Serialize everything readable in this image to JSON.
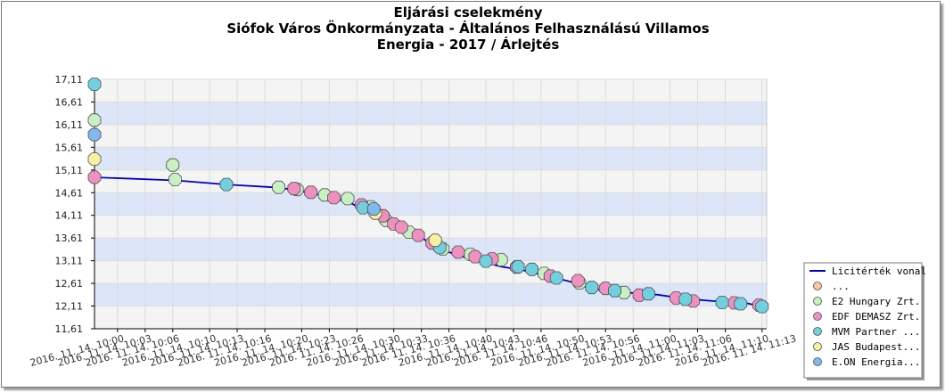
{
  "chart_data": {
    "type": "line",
    "title": [
      "Eljárási cselekmény",
      "Siófok Város Önkormányzata - Általános Felhasználású Villamos",
      "Energia - 2017 / Árlejtés"
    ],
    "ylim": [
      11.61,
      17.11
    ],
    "yticks": [
      "11,61",
      "12,11",
      "12,61",
      "13,11",
      "13,61",
      "14,11",
      "14,61",
      "15,11",
      "15,61",
      "16,11",
      "16,61",
      "17,11"
    ],
    "xlim": [
      "2016.11.14. 09:57:30",
      "2016.11.14. 11:10:30"
    ],
    "xticks": [
      {
        "t": "2016.11.14. 10:00",
        "label": "2016. 11. 14. 10:00"
      },
      {
        "t": "2016.11.14. 10:03",
        "label": "2016. 11. 14. 10:03"
      },
      {
        "t": "2016.11.14. 10:06",
        "label": "2016. 11. 14. 10:06"
      },
      {
        "t": "2016.11.14. 10:10",
        "label": "2016. 11. 14. 10:10"
      },
      {
        "t": "2016.11.14. 10:13",
        "label": "2016. 11. 14. 10:13"
      },
      {
        "t": "2016.11.14. 10:16",
        "label": "2016. 11. 14. 10:16"
      },
      {
        "t": "2016.11.14. 10:20",
        "label": "2016. 11. 14. 10:20"
      },
      {
        "t": "2016.11.14. 10:23",
        "label": "2016. 11. 14. 10:23"
      },
      {
        "t": "2016.11.14. 10:26",
        "label": "2016. 11. 14. 10:26"
      },
      {
        "t": "2016.11.14. 10:30",
        "label": "2016. 11. 14. 10:30"
      },
      {
        "t": "2016.11.14. 10:33",
        "label": "2016. 11. 14. 10:33"
      },
      {
        "t": "2016.11.14. 10:36",
        "label": "2016. 11. 14. 10:36"
      },
      {
        "t": "2016.11.14. 10:40",
        "label": "2016. 11. 14. 10:40"
      },
      {
        "t": "2016.11.14. 10:43",
        "label": "2016. 11. 14. 10:43"
      },
      {
        "t": "2016.11.14. 10:46",
        "label": "2016. 11. 14. 10:46"
      },
      {
        "t": "2016.11.14. 10:50",
        "label": "2016. 11. 14. 10:50"
      },
      {
        "t": "2016.11.14. 10:53",
        "label": "2016. 11. 14. 10:53"
      },
      {
        "t": "2016.11.14. 10:56",
        "label": "2016. 11. 14. 10:56"
      },
      {
        "t": "2016.11.14. 11:00",
        "label": "2016. 11. 14. 11:00"
      },
      {
        "t": "2016.11.14. 11:03",
        "label": "2016. 11. 14. 11:03"
      },
      {
        "t": "2016.11.14. 11:06",
        "label": "2016. 11. 14. 11:06"
      },
      {
        "t": "2016.11.14. 11:10",
        "label": "2016. 11. 14. 11:10"
      },
      {
        "t": "2016.11.14. 11:13",
        "label": "2016. 11. 14. 11:13"
      }
    ],
    "grid": true,
    "legend_position": "bottom-right",
    "legend": [
      {
        "label": "Licitérték vonal",
        "kind": "line",
        "color": "#0000cc"
      },
      {
        "label": "...",
        "kind": "marker",
        "color": "#f5c8a8"
      },
      {
        "label": "E2 Hungary Zrt.",
        "kind": "marker",
        "color": "#c8f0c0"
      },
      {
        "label": "EDF DEMASZ Zrt.",
        "kind": "marker",
        "color": "#f090c0"
      },
      {
        "label": "MVM Partner ...",
        "kind": "marker",
        "color": "#70d0e0"
      },
      {
        "label": "JAS Budapest...",
        "kind": "marker",
        "color": "#f8f0a0"
      },
      {
        "label": "E.ON Energia...",
        "kind": "marker",
        "color": "#80b8f0"
      }
    ],
    "series": [
      {
        "name": "Licitérték vonal",
        "kind": "line",
        "color": "#0000cc",
        "points": [
          [
            "2016.11.14. 09:57:30",
            14.95
          ],
          [
            "2016.11.14. 10:06:20",
            14.88
          ],
          [
            "2016.11.14. 10:11:50",
            14.79
          ],
          [
            "2016.11.14. 10:17:40",
            14.72
          ],
          [
            "2016.11.14. 10:20:00",
            14.64
          ],
          [
            "2016.11.14. 10:22:30",
            14.54
          ],
          [
            "2016.11.14. 10:25:10",
            14.4
          ],
          [
            "2016.11.14. 10:26:20",
            14.27
          ],
          [
            "2016.11.14. 10:28:00",
            14.16
          ],
          [
            "2016.11.14. 10:29:10",
            14.02
          ],
          [
            "2016.11.14. 10:30:40",
            13.86
          ],
          [
            "2016.11.14. 10:32:20",
            13.69
          ],
          [
            "2016.11.14. 10:34:00",
            13.5
          ],
          [
            "2016.11.14. 10:35:30",
            13.33
          ],
          [
            "2016.11.14. 10:37:40",
            13.19
          ],
          [
            "2016.11.14. 10:39:10",
            13.1
          ],
          [
            "2016.11.14. 10:41:40",
            12.98
          ],
          [
            "2016.11.14. 10:44:00",
            12.9
          ],
          [
            "2016.11.14. 10:46:40",
            12.77
          ],
          [
            "2016.11.14. 10:49:10",
            12.65
          ],
          [
            "2016.11.14. 10:51:10",
            12.51
          ],
          [
            "2016.11.14. 10:53:10",
            12.45
          ],
          [
            "2016.11.14. 10:55:10",
            12.41
          ],
          [
            "2016.11.14. 10:58:40",
            12.36
          ],
          [
            "2016.11.14. 11:01:40",
            12.27
          ],
          [
            "2016.11.14. 11:04:40",
            12.22
          ],
          [
            "2016.11.14. 11:08:10",
            12.18
          ],
          [
            "2016.11.14. 11:10:00",
            12.1
          ]
        ]
      },
      {
        "name": "...",
        "kind": "markers",
        "color": "#f5c8a8",
        "points": [
          [
            "2016.11.14. 10:47:00",
            12.77
          ]
        ]
      },
      {
        "name": "E2 Hungary Zrt.",
        "kind": "markers",
        "color": "#c8f0c0",
        "points": [
          [
            "2016.11.14. 09:57:30",
            16.21
          ],
          [
            "2016.11.14. 10:06:00",
            15.22
          ],
          [
            "2016.11.14. 10:06:15",
            14.9
          ],
          [
            "2016.11.14. 10:17:30",
            14.73
          ],
          [
            "2016.11.14. 10:19:30",
            14.68
          ],
          [
            "2016.11.14. 10:22:30",
            14.56
          ],
          [
            "2016.11.14. 10:25:00",
            14.48
          ],
          [
            "2016.11.14. 10:27:30",
            14.3
          ],
          [
            "2016.11.14. 10:29:10",
            14.0
          ],
          [
            "2016.11.14. 10:31:40",
            13.74
          ],
          [
            "2016.11.14. 10:35:20",
            13.37
          ],
          [
            "2016.11.14. 10:38:20",
            13.25
          ],
          [
            "2016.11.14. 10:41:40",
            13.13
          ],
          [
            "2016.11.14. 10:46:20",
            12.83
          ],
          [
            "2016.11.14. 10:50:10",
            12.62
          ],
          [
            "2016.11.14. 10:55:00",
            12.41
          ]
        ]
      },
      {
        "name": "EDF DEMASZ Zrt.",
        "kind": "markers",
        "color": "#f090c0",
        "points": [
          [
            "2016.11.14. 09:57:30",
            14.95
          ],
          [
            "2016.11.14. 10:19:10",
            14.7
          ],
          [
            "2016.11.14. 10:21:00",
            14.62
          ],
          [
            "2016.11.14. 10:23:30",
            14.5
          ],
          [
            "2016.11.14. 10:26:30",
            14.34
          ],
          [
            "2016.11.14. 10:28:50",
            14.1
          ],
          [
            "2016.11.14. 10:30:00",
            13.92
          ],
          [
            "2016.11.14. 10:30:50",
            13.85
          ],
          [
            "2016.11.14. 10:32:40",
            13.67
          ],
          [
            "2016.11.14. 10:34:10",
            13.5
          ],
          [
            "2016.11.14. 10:37:00",
            13.3
          ],
          [
            "2016.11.14. 10:38:50",
            13.2
          ],
          [
            "2016.11.14. 10:40:40",
            13.15
          ],
          [
            "2016.11.14. 10:43:20",
            12.97
          ],
          [
            "2016.11.14. 10:47:00",
            12.77
          ],
          [
            "2016.11.14. 10:50:00",
            12.67
          ],
          [
            "2016.11.14. 10:53:00",
            12.5
          ],
          [
            "2016.11.14. 10:56:40",
            12.35
          ],
          [
            "2016.11.14. 11:00:40",
            12.29
          ],
          [
            "2016.11.14. 11:02:30",
            12.22
          ],
          [
            "2016.11.14. 11:07:00",
            12.18
          ],
          [
            "2016.11.14. 11:09:40",
            12.13
          ]
        ]
      },
      {
        "name": "MVM Partner ...",
        "kind": "markers",
        "color": "#70d0e0",
        "points": [
          [
            "2016.11.14. 09:57:30",
            17.0
          ],
          [
            "2016.11.14. 10:11:50",
            14.79
          ],
          [
            "2016.11.14. 10:26:40",
            14.28
          ],
          [
            "2016.11.14. 10:35:00",
            13.4
          ],
          [
            "2016.11.14. 10:40:00",
            13.1
          ],
          [
            "2016.11.14. 10:43:30",
            12.98
          ],
          [
            "2016.11.14. 10:45:00",
            12.92
          ],
          [
            "2016.11.14. 10:47:40",
            12.73
          ],
          [
            "2016.11.14. 10:51:30",
            12.52
          ],
          [
            "2016.11.14. 10:54:00",
            12.45
          ],
          [
            "2016.11.14. 10:57:40",
            12.38
          ],
          [
            "2016.11.14. 11:01:40",
            12.26
          ],
          [
            "2016.11.14. 11:05:40",
            12.19
          ],
          [
            "2016.11.14. 11:07:40",
            12.16
          ],
          [
            "2016.11.14. 11:10:00",
            12.1
          ]
        ]
      },
      {
        "name": "JAS Budapest...",
        "kind": "markers",
        "color": "#f8f0a0",
        "points": [
          [
            "2016.11.14. 09:57:30",
            15.35
          ],
          [
            "2016.11.14. 10:28:00",
            14.16
          ],
          [
            "2016.11.14. 10:34:30",
            13.56
          ]
        ]
      },
      {
        "name": "E.ON Energia...",
        "kind": "markers",
        "color": "#80b8f0",
        "points": [
          [
            "2016.11.14. 09:57:30",
            15.89
          ],
          [
            "2016.11.14. 10:27:50",
            14.25
          ]
        ]
      }
    ]
  }
}
